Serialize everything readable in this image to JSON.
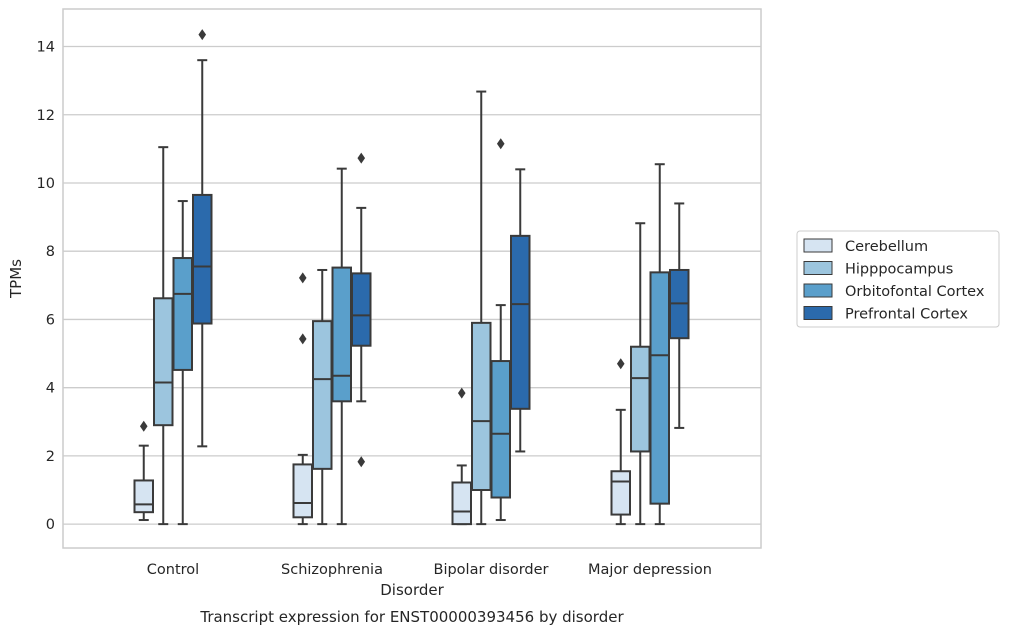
{
  "chart_data": {
    "type": "boxplot",
    "title": "Transcript expression for ENST00000393456 by disorder",
    "xlabel": "Disorder",
    "ylabel": "TPMs",
    "ylim": [
      -0.7,
      15.1
    ],
    "yticks": [
      0,
      2,
      4,
      6,
      8,
      10,
      12,
      14
    ],
    "grid": true,
    "legend_position": "right",
    "categories": [
      "Control",
      "Schizophrenia",
      "Bipolar disorder",
      "Major depression"
    ],
    "series": [
      {
        "name": "Cerebellum",
        "color": "#d6e4f2",
        "boxes": [
          {
            "whisker_low": 0.12,
            "q1": 0.35,
            "median": 0.58,
            "q3": 1.28,
            "whisker_high": 2.3,
            "outliers": [
              2.87
            ]
          },
          {
            "whisker_low": 0.0,
            "q1": 0.2,
            "median": 0.62,
            "q3": 1.75,
            "whisker_high": 2.03,
            "outliers": [
              7.22,
              5.43
            ]
          },
          {
            "whisker_low": 0.0,
            "q1": 0.0,
            "median": 0.37,
            "q3": 1.22,
            "whisker_high": 1.72,
            "outliers": [
              3.84
            ]
          },
          {
            "whisker_low": 0.0,
            "q1": 0.28,
            "median": 1.25,
            "q3": 1.55,
            "whisker_high": 3.35,
            "outliers": [
              4.7
            ]
          }
        ]
      },
      {
        "name": "Hipppocampus",
        "color": "#9cc5de",
        "boxes": [
          {
            "whisker_low": 0.0,
            "q1": 2.9,
            "median": 4.15,
            "q3": 6.62,
            "whisker_high": 11.05,
            "outliers": []
          },
          {
            "whisker_low": 0.0,
            "q1": 1.62,
            "median": 4.25,
            "q3": 5.95,
            "whisker_high": 7.45,
            "outliers": []
          },
          {
            "whisker_low": 0.0,
            "q1": 1.0,
            "median": 3.02,
            "q3": 5.9,
            "whisker_high": 12.68,
            "outliers": []
          },
          {
            "whisker_low": 0.0,
            "q1": 2.13,
            "median": 4.28,
            "q3": 5.2,
            "whisker_high": 8.82,
            "outliers": []
          }
        ]
      },
      {
        "name": "Orbitofontal Cortex",
        "color": "#5a9fcb",
        "boxes": [
          {
            "whisker_low": 0.0,
            "q1": 4.52,
            "median": 6.75,
            "q3": 7.8,
            "whisker_high": 9.47,
            "outliers": []
          },
          {
            "whisker_low": 0.0,
            "q1": 3.6,
            "median": 4.35,
            "q3": 7.52,
            "whisker_high": 10.42,
            "outliers": []
          },
          {
            "whisker_low": 0.12,
            "q1": 0.78,
            "median": 2.65,
            "q3": 4.78,
            "whisker_high": 6.42,
            "outliers": [
              11.15
            ]
          },
          {
            "whisker_low": 0.0,
            "q1": 0.6,
            "median": 4.95,
            "q3": 7.38,
            "whisker_high": 10.55,
            "outliers": []
          }
        ]
      },
      {
        "name": "Prefrontal Cortex",
        "color": "#2b6aac",
        "boxes": [
          {
            "whisker_low": 2.28,
            "q1": 5.88,
            "median": 7.55,
            "q3": 9.65,
            "whisker_high": 13.6,
            "outliers": [
              14.35
            ]
          },
          {
            "whisker_low": 3.6,
            "q1": 5.23,
            "median": 6.12,
            "q3": 7.35,
            "whisker_high": 9.27,
            "outliers": [
              10.73,
              1.83
            ]
          },
          {
            "whisker_low": 2.13,
            "q1": 3.38,
            "median": 6.45,
            "q3": 8.45,
            "whisker_high": 10.4,
            "outliers": []
          },
          {
            "whisker_low": 2.82,
            "q1": 5.45,
            "median": 6.47,
            "q3": 7.45,
            "whisker_high": 9.4,
            "outliers": []
          }
        ]
      }
    ]
  }
}
